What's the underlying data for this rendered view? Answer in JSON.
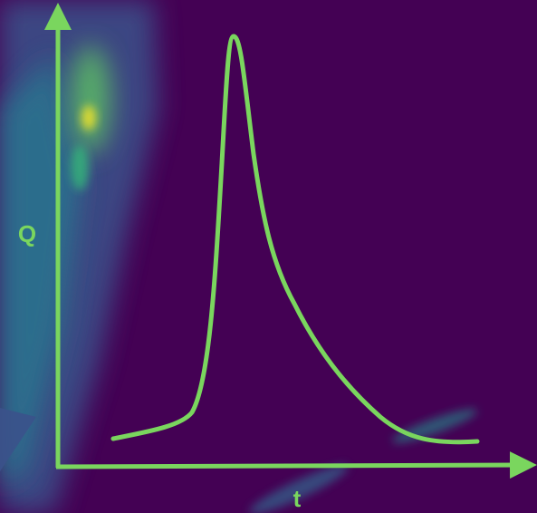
{
  "axes": {
    "y_label": "Q",
    "x_label": "t"
  }
}
